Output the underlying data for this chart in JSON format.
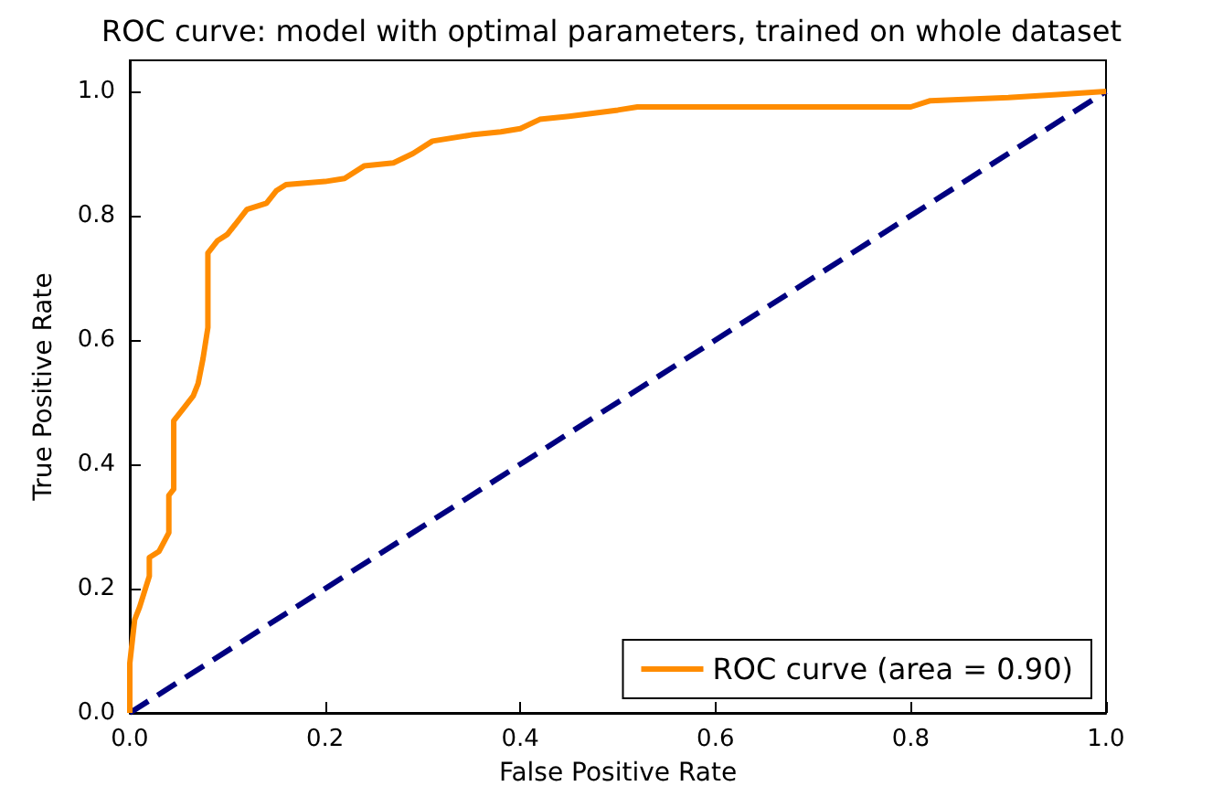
{
  "chart_data": {
    "type": "line",
    "title": "ROC curve: model with optimal parameters, trained on whole dataset",
    "xlabel": "False Positive Rate",
    "ylabel": "True Positive Rate",
    "xlim": [
      0,
      1
    ],
    "ylim": [
      0,
      1.05
    ],
    "xticks": [
      {
        "value": 0,
        "label": "0.0"
      },
      {
        "value": 0.2,
        "label": "0.2"
      },
      {
        "value": 0.4,
        "label": "0.4"
      },
      {
        "value": 0.6,
        "label": "0.6"
      },
      {
        "value": 0.8,
        "label": "0.8"
      },
      {
        "value": 1,
        "label": "1.0"
      }
    ],
    "yticks": [
      {
        "value": 0,
        "label": "0.0"
      },
      {
        "value": 0.2,
        "label": "0.2"
      },
      {
        "value": 0.4,
        "label": "0.4"
      },
      {
        "value": 0.6,
        "label": "0.6"
      },
      {
        "value": 0.8,
        "label": "0.8"
      },
      {
        "value": 1,
        "label": "1.0"
      }
    ],
    "grid": false,
    "legend": "bottom right",
    "marker": "none",
    "series": [
      {
        "name": "ROC curve (area = 0.90)",
        "color": "#ff8c00",
        "line_style": "solid",
        "x": [
          0,
          0,
          0.005,
          0.01,
          0.02,
          0.02,
          0.03,
          0.04,
          0.04,
          0.045,
          0.045,
          0.055,
          0.065,
          0.07,
          0.075,
          0.08,
          0.08,
          0.09,
          0.1,
          0.11,
          0.12,
          0.14,
          0.15,
          0.16,
          0.2,
          0.22,
          0.24,
          0.27,
          0.29,
          0.31,
          0.35,
          0.38,
          0.4,
          0.42,
          0.45,
          0.5,
          0.52,
          0.8,
          0.82,
          0.9,
          0.95,
          1
        ],
        "values": [
          0,
          0.08,
          0.15,
          0.17,
          0.22,
          0.25,
          0.26,
          0.29,
          0.35,
          0.36,
          0.47,
          0.49,
          0.51,
          0.53,
          0.57,
          0.62,
          0.74,
          0.76,
          0.77,
          0.79,
          0.81,
          0.82,
          0.84,
          0.85,
          0.855,
          0.86,
          0.88,
          0.885,
          0.9,
          0.92,
          0.93,
          0.935,
          0.94,
          0.955,
          0.96,
          0.97,
          0.975,
          0.975,
          0.985,
          0.99,
          0.995,
          1
        ]
      },
      {
        "color": "#000080",
        "line_style": "dashed",
        "x": [
          0,
          1
        ],
        "values": [
          0,
          1
        ]
      }
    ]
  }
}
